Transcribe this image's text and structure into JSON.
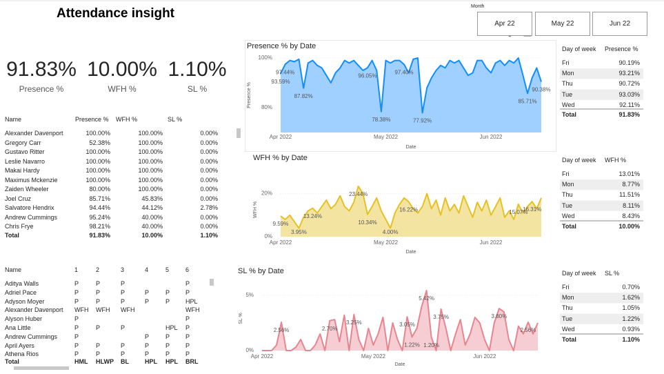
{
  "title": "Attendance insight",
  "kpis": [
    {
      "value": "91.83%",
      "label": "Presence %"
    },
    {
      "value": "10.00%",
      "label": "WFH %"
    },
    {
      "value": "1.10%",
      "label": "SL %"
    }
  ],
  "month_slicer": {
    "label": "Month",
    "options": [
      "Apr 22",
      "May 22",
      "Jun 22"
    ]
  },
  "employee_table": {
    "columns": [
      "Name",
      "Presence %",
      "WFH %",
      "SL %"
    ],
    "rows": [
      [
        "Alexander Davenport",
        "100.00%",
        "100.00%",
        "0.00%"
      ],
      [
        "Gregory Carr",
        "52.38%",
        "100.00%",
        "0.00%"
      ],
      [
        "Gustavo Ritter",
        "100.00%",
        "100.00%",
        "0.00%"
      ],
      [
        "Leslie Navarro",
        "100.00%",
        "100.00%",
        "0.00%"
      ],
      [
        "Makai Hardy",
        "100.00%",
        "100.00%",
        "0.00%"
      ],
      [
        "Maximus Mckenzie",
        "100.00%",
        "100.00%",
        "0.00%"
      ],
      [
        "Zaiden Wheeler",
        "80.00%",
        "100.00%",
        "0.00%"
      ],
      [
        "Joel Cruz",
        "85.71%",
        "45.83%",
        "0.00%"
      ],
      [
        "Salvatore Hendrix",
        "94.44%",
        "44.12%",
        "2.78%"
      ],
      [
        "Andrew Cummings",
        "95.24%",
        "40.00%",
        "0.00%"
      ],
      [
        "Chris Frye",
        "98.21%",
        "40.00%",
        "0.00%"
      ]
    ],
    "total": [
      "Total",
      "91.83%",
      "10.00%",
      "1.10%"
    ]
  },
  "daily_table": {
    "columns": [
      "Name",
      "1",
      "2",
      "3",
      "4",
      "5",
      "6"
    ],
    "rows": [
      [
        "Aditya Walls",
        "P",
        "P",
        "P",
        null,
        null,
        "P"
      ],
      [
        "Adriel Pace",
        "P",
        "P",
        "P",
        "P",
        "P",
        "P"
      ],
      [
        "Adyson Moyer",
        "P",
        "P",
        "P",
        "P",
        "P",
        "HPL"
      ],
      [
        "Alexander Davenport",
        "WFH",
        "WFH",
        "WFH",
        null,
        null,
        "WFH"
      ],
      [
        "Alyson Huber",
        "P",
        null,
        null,
        null,
        null,
        "P"
      ],
      [
        "Ana Little",
        "P",
        "P",
        "P",
        null,
        "HPL",
        "P"
      ],
      [
        "Andrew Cummings",
        "P",
        null,
        null,
        "P",
        "P",
        "P"
      ],
      [
        "April Ayers",
        "P",
        "P",
        "P",
        "P",
        "P",
        "P"
      ],
      [
        "Athena Rios",
        "P",
        "P",
        "P",
        "P",
        "P",
        "P"
      ]
    ],
    "total": [
      "Total",
      "HML",
      "HLWP",
      "BL",
      "HPL",
      "HPL",
      "BRL"
    ]
  },
  "day_tables": [
    {
      "columns": [
        "Day of week",
        "Presence %"
      ],
      "rows": [
        [
          "Fri",
          "90.19%"
        ],
        [
          "Mon",
          "93.21%"
        ],
        [
          "Thu",
          "90.72%"
        ],
        [
          "Tue",
          "93.03%"
        ],
        [
          "Wed",
          "92.11%"
        ]
      ],
      "total": [
        "Total",
        "91.83%"
      ]
    },
    {
      "columns": [
        "Day of week",
        "WFH %"
      ],
      "rows": [
        [
          "Fri",
          "13.01%"
        ],
        [
          "Mon",
          "8.77%"
        ],
        [
          "Thu",
          "11.51%"
        ],
        [
          "Tue",
          "8.11%"
        ],
        [
          "Wed",
          "8.43%"
        ]
      ],
      "total": [
        "Total",
        "10.00%"
      ]
    },
    {
      "columns": [
        "Day of week",
        "SL %"
      ],
      "rows": [
        [
          "Fri",
          "0.70%"
        ],
        [
          "Mon",
          "1.62%"
        ],
        [
          "Thu",
          "1.05%"
        ],
        [
          "Tue",
          "1.22%"
        ],
        [
          "Wed",
          "0.93%"
        ]
      ],
      "total": [
        "Total",
        "1.10%"
      ]
    }
  ],
  "chart_data": [
    {
      "type": "area",
      "title": "Presence % by Date",
      "x_label": "Date",
      "y_label": "Presence %",
      "color": "#118dff",
      "fill": "#9fd0ff",
      "categories": [
        "Apr 2022",
        null,
        null,
        null,
        null,
        null,
        null,
        null,
        null,
        null,
        null,
        null,
        null,
        null,
        null,
        null,
        null,
        null,
        null,
        null,
        null,
        null,
        null,
        "May 2022",
        null,
        null,
        null,
        null,
        null,
        null,
        null,
        null,
        null,
        null,
        null,
        null,
        null,
        null,
        null,
        null,
        null,
        null,
        null,
        null,
        null,
        null,
        "Jun 2022",
        null,
        null,
        null,
        null,
        null,
        null,
        null,
        null,
        null,
        null,
        null
      ],
      "values": [
        93.59,
        97.44,
        99,
        98.5,
        99.5,
        87.82,
        98,
        99,
        97,
        96,
        93,
        90,
        94,
        96,
        99,
        98,
        99,
        97,
        95,
        96.05,
        99,
        95,
        78.38,
        99,
        98,
        99,
        99,
        97.4,
        94,
        99.5,
        100,
        77.92,
        88,
        92,
        95,
        97,
        96,
        99,
        98,
        99,
        96,
        93,
        94,
        99,
        99,
        96,
        94,
        98,
        99,
        97,
        99,
        98,
        100,
        93,
        85.71,
        92,
        96,
        90.38
      ],
      "value_labels": [
        "93.59%",
        "97.44%",
        null,
        null,
        null,
        "87.82%",
        null,
        null,
        null,
        null,
        null,
        null,
        null,
        null,
        null,
        null,
        null,
        null,
        null,
        "96.05%",
        null,
        null,
        "78.38%",
        null,
        null,
        null,
        null,
        "97.40%",
        null,
        null,
        null,
        "77.92%",
        null,
        null,
        null,
        null,
        null,
        null,
        null,
        null,
        null,
        null,
        null,
        null,
        null,
        null,
        null,
        null,
        null,
        null,
        null,
        null,
        null,
        null,
        "85.71%",
        null,
        null,
        "90.38%"
      ],
      "ylim": [
        70,
        100
      ],
      "yticks": [
        {
          "value": 80,
          "label": "80%"
        },
        {
          "value": 100,
          "label": "100%"
        }
      ]
    },
    {
      "type": "area",
      "title": "WFH % by Date",
      "x_label": "Date",
      "y_label": "WFH %",
      "color": "#e6c024",
      "fill": "#f3e4a2",
      "categories": [
        "Apr 2022",
        null,
        null,
        null,
        null,
        null,
        null,
        null,
        null,
        null,
        null,
        null,
        null,
        null,
        null,
        null,
        null,
        null,
        null,
        null,
        null,
        null,
        null,
        "May 2022",
        null,
        null,
        null,
        null,
        null,
        null,
        null,
        null,
        null,
        null,
        null,
        null,
        null,
        null,
        null,
        null,
        null,
        null,
        null,
        null,
        null,
        null,
        "Jun 2022",
        null,
        null,
        null,
        null,
        null,
        null,
        null,
        null,
        null,
        null,
        null
      ],
      "values": [
        9.59,
        8,
        10,
        7,
        3.95,
        9,
        12,
        13.24,
        11,
        14,
        17,
        13,
        15,
        19,
        14,
        12,
        16,
        23.44,
        20,
        10.34,
        14,
        18,
        12,
        8,
        4,
        11,
        15,
        18,
        16.22,
        13,
        11,
        14,
        20,
        13,
        17,
        10,
        18,
        12,
        15,
        11,
        19,
        14,
        9,
        16,
        12,
        17,
        10,
        14,
        18,
        9,
        12,
        8,
        15.07,
        11,
        14,
        16.31,
        13,
        18
      ],
      "value_labels": [
        "9.59%",
        null,
        null,
        null,
        "3.95%",
        null,
        null,
        "13.24%",
        null,
        null,
        null,
        null,
        null,
        null,
        null,
        null,
        null,
        "23.44%",
        null,
        "10.34%",
        null,
        null,
        null,
        null,
        "4.00%",
        null,
        null,
        null,
        "16.22%",
        null,
        null,
        null,
        null,
        null,
        null,
        null,
        null,
        null,
        null,
        null,
        null,
        null,
        null,
        null,
        null,
        null,
        null,
        null,
        null,
        null,
        null,
        null,
        "15.07%",
        null,
        null,
        "16.31%",
        null,
        null
      ],
      "ylim": [
        0,
        25
      ],
      "yticks": [
        {
          "value": 0,
          "label": "0%"
        },
        {
          "value": 20,
          "label": "20%"
        }
      ]
    },
    {
      "type": "area",
      "title": "SL % by Date",
      "x_label": "Date",
      "y_label": "SL %",
      "color": "#e8848f",
      "fill": "#f6cdd2",
      "categories": [
        "Apr 2022",
        null,
        null,
        null,
        null,
        null,
        null,
        null,
        null,
        null,
        null,
        null,
        null,
        null,
        null,
        null,
        null,
        null,
        null,
        null,
        null,
        null,
        null,
        "May 2022",
        null,
        null,
        null,
        null,
        null,
        null,
        null,
        null,
        null,
        null,
        null,
        null,
        null,
        null,
        null,
        null,
        null,
        null,
        null,
        null,
        null,
        null,
        "Jun 2022",
        null,
        null,
        null,
        null,
        null,
        null,
        null,
        null,
        null,
        null,
        null
      ],
      "values": [
        0,
        0,
        0,
        0.5,
        2.56,
        0,
        0,
        0.3,
        1,
        0,
        0,
        0.5,
        1.5,
        0,
        2.7,
        2.8,
        0.8,
        3.2,
        0,
        3.25,
        1,
        0,
        2,
        0.5,
        1.5,
        3,
        0,
        2.5,
        1,
        0,
        3.05,
        1.22,
        2,
        4,
        5.42,
        1.2,
        0,
        3.75,
        2,
        0,
        1.5,
        2.8,
        0.5,
        1.5,
        3,
        2.5,
        1,
        0,
        2.5,
        3.8,
        3.5,
        1,
        0,
        2.2,
        1.5,
        2.56,
        1.5,
        2.5
      ],
      "value_labels": [
        null,
        null,
        null,
        null,
        "2.56%",
        null,
        null,
        null,
        null,
        null,
        null,
        null,
        null,
        null,
        "2.70%",
        null,
        null,
        null,
        null,
        "3.25%",
        null,
        null,
        null,
        null,
        null,
        null,
        null,
        null,
        null,
        null,
        "3.05%",
        "1.22%",
        null,
        null,
        "5.42%",
        "1.20%",
        null,
        "3.75%",
        null,
        null,
        null,
        null,
        null,
        null,
        null,
        null,
        null,
        null,
        null,
        "3.80%",
        null,
        null,
        null,
        null,
        null,
        "2.56%",
        null,
        null
      ],
      "ylim": [
        0,
        5.8
      ],
      "yticks": [
        {
          "value": 0,
          "label": "0%"
        },
        {
          "value": 5,
          "label": "5%"
        }
      ]
    }
  ]
}
